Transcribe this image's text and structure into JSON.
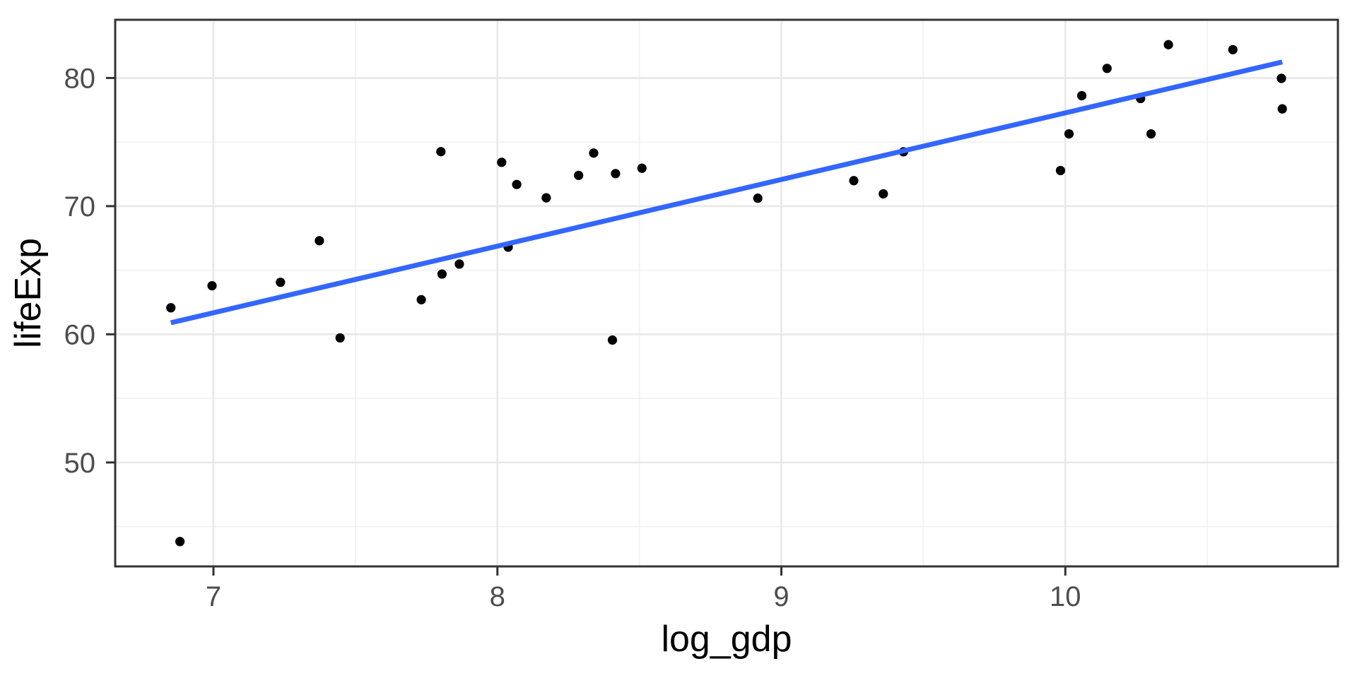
{
  "chart_data": {
    "type": "scatter",
    "title": "",
    "xlabel": "log_gdp",
    "ylabel": "lifeExp",
    "xlim": [
      6.654,
      10.96
    ],
    "ylim": [
      41.889,
      84.542
    ],
    "x_ticks": [
      7,
      8,
      9,
      10
    ],
    "x_tick_labels": [
      "7",
      "8",
      "9",
      "10"
    ],
    "y_ticks": [
      50,
      60,
      70,
      80
    ],
    "y_tick_labels": [
      "50",
      "60",
      "70",
      "80"
    ],
    "x_minor_gridlines": [
      7.5,
      8.5,
      9.5,
      10.5
    ],
    "y_minor_gridlines": [
      45,
      55,
      65,
      75
    ],
    "grid": "major-and-minor",
    "legend_position": "none",
    "points": [
      [
        6.85,
        62.07
      ],
      [
        6.882,
        43.83
      ],
      [
        6.995,
        63.79
      ],
      [
        7.236,
        64.06
      ],
      [
        7.373,
        67.3
      ],
      [
        7.446,
        59.72
      ],
      [
        7.732,
        62.7
      ],
      [
        7.801,
        74.25
      ],
      [
        7.805,
        64.7
      ],
      [
        7.866,
        65.48
      ],
      [
        8.015,
        73.42
      ],
      [
        8.038,
        66.8
      ],
      [
        8.068,
        71.69
      ],
      [
        8.172,
        70.65
      ],
      [
        8.286,
        72.4
      ],
      [
        8.339,
        74.14
      ],
      [
        8.405,
        59.55
      ],
      [
        8.416,
        72.54
      ],
      [
        8.509,
        72.96
      ],
      [
        8.917,
        70.62
      ],
      [
        9.255,
        71.99
      ],
      [
        9.359,
        70.96
      ],
      [
        9.43,
        74.24
      ],
      [
        9.983,
        72.78
      ],
      [
        10.013,
        75.64
      ],
      [
        10.058,
        78.62
      ],
      [
        10.147,
        80.75
      ],
      [
        10.265,
        78.4
      ],
      [
        10.302,
        75.64
      ],
      [
        10.363,
        82.6
      ],
      [
        10.59,
        82.21
      ],
      [
        10.761,
        79.97
      ],
      [
        10.764,
        77.59
      ]
    ],
    "trend_line": {
      "method": "linear",
      "endpoints": [
        [
          6.85,
          60.9
        ],
        [
          10.764,
          81.25
        ]
      ],
      "slope": 5.2,
      "intercept_at_mean": 70.73
    },
    "colors": {
      "point": "#000000",
      "smooth_line": "#3366FF",
      "grid_major": "#E8E8E8",
      "grid_minor": "#F2F2F2",
      "panel_background": "#FFFFFF",
      "panel_border": "#333333",
      "tick_mark": "#333333",
      "tick_label": "#4D4D4D",
      "axis_title": "#000000"
    }
  }
}
